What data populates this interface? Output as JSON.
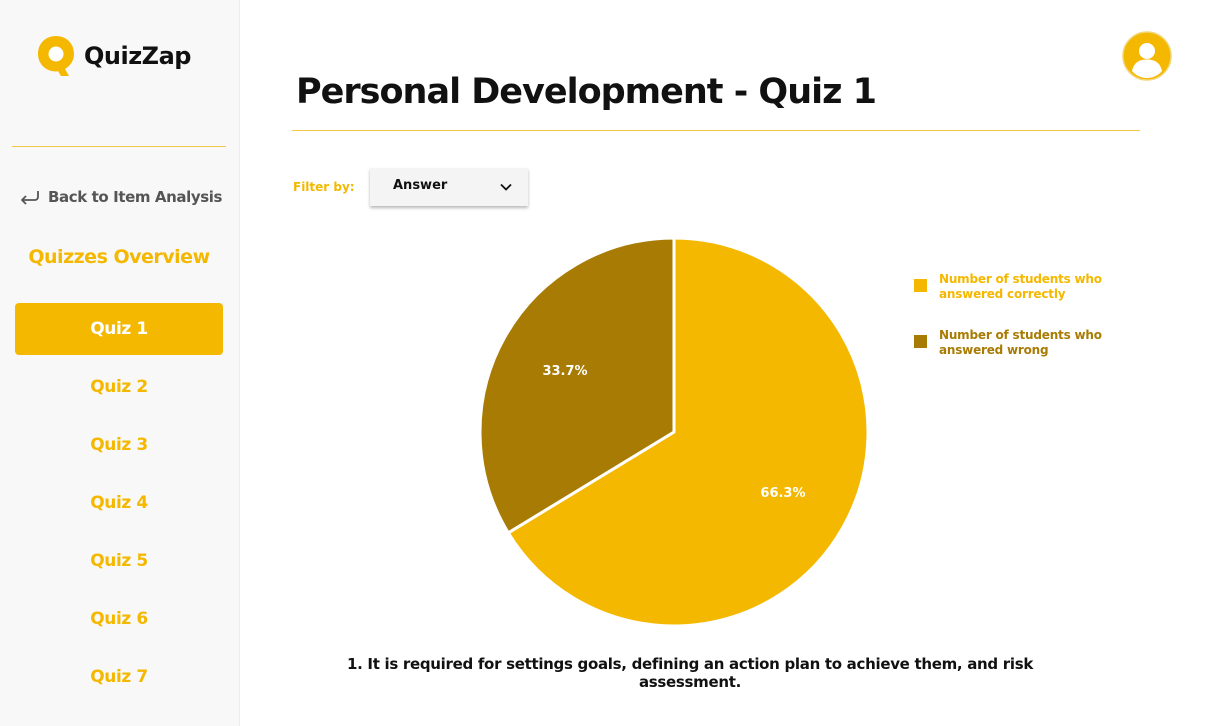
{
  "brand": {
    "name": "QuizZap",
    "accent": "#f5b800",
    "accent_dark": "#a87c04"
  },
  "sidebar": {
    "back_icon": "return-arrow-icon",
    "back_label": "Back to Item Analysis",
    "section_title": "Quizzes Overview",
    "active_index": 0,
    "items": [
      {
        "label": "Quiz 1"
      },
      {
        "label": "Quiz 2"
      },
      {
        "label": "Quiz 3"
      },
      {
        "label": "Quiz 4"
      },
      {
        "label": "Quiz 5"
      },
      {
        "label": "Quiz 6"
      },
      {
        "label": "Quiz 7"
      }
    ]
  },
  "header": {
    "title": "Personal Development - Quiz 1",
    "avatar_icon": "user-avatar-icon"
  },
  "filter": {
    "label": "Filter by:",
    "value": "Answer",
    "icon": "chevron-down-icon"
  },
  "chart_data": {
    "type": "pie",
    "title": "",
    "legend_position": "right",
    "slices": [
      {
        "label": "Number of students who answered correctly",
        "value": 66.3,
        "display": "66.3%",
        "color": "#f5b800"
      },
      {
        "label": "Number of students who answered wrong",
        "value": 33.7,
        "display": "33.7%",
        "color": "#a87c04"
      }
    ]
  },
  "question": {
    "text": "1.  It is required for settings goals, defining an action plan to achieve them, and risk assessment."
  }
}
